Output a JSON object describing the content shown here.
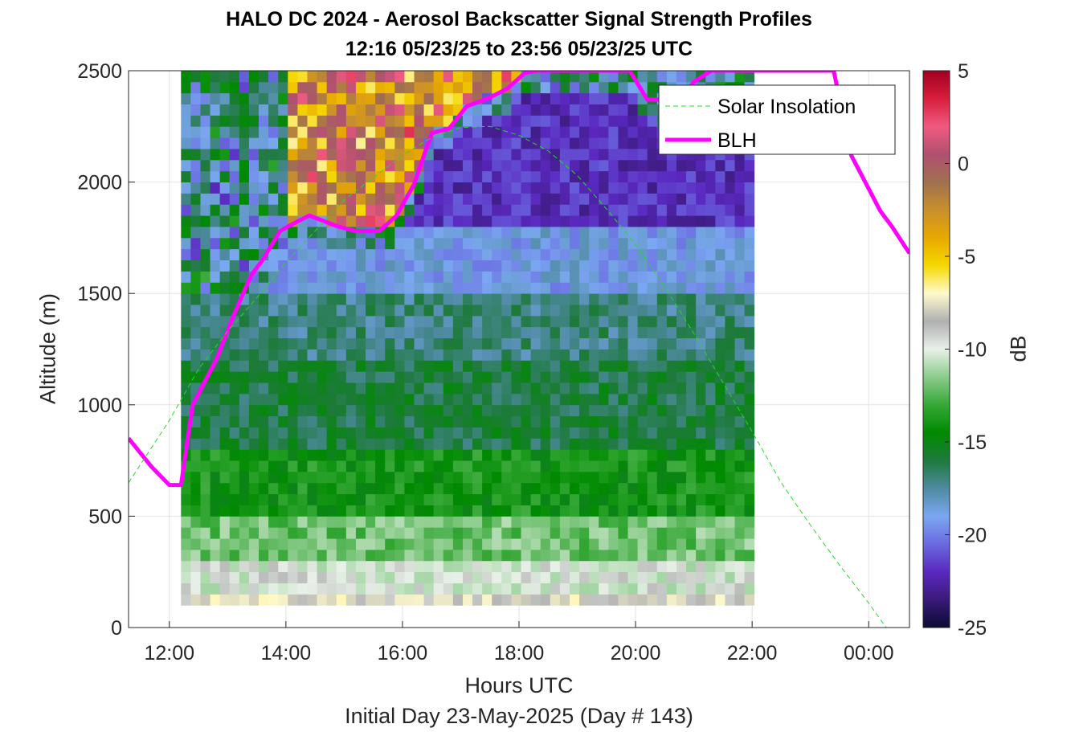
{
  "chart_data": {
    "type": "heatmap",
    "title": "HALO DC 2024 - Aerosol Backscatter Signal Strength Profiles",
    "subtitle": "12:16 05/23/25 to 23:56 05/23/25  UTC",
    "xlabel": "Hours UTC",
    "caption": "Initial Day 23-May-2025 (Day # 143)",
    "ylabel": "Altitude (m)",
    "colorbar_label": "dB",
    "x_range_hours": [
      11.3,
      24.7
    ],
    "y_range_m": [
      0,
      2500
    ],
    "x_ticks": [
      {
        "hour": 12,
        "label": "12:00"
      },
      {
        "hour": 14,
        "label": "14:00"
      },
      {
        "hour": 16,
        "label": "16:00"
      },
      {
        "hour": 18,
        "label": "18:00"
      },
      {
        "hour": 20,
        "label": "20:00"
      },
      {
        "hour": 22,
        "label": "22:00"
      },
      {
        "hour": 24,
        "label": "00:00"
      }
    ],
    "y_ticks": [
      {
        "value": 0,
        "label": "0"
      },
      {
        "value": 500,
        "label": "500"
      },
      {
        "value": 1000,
        "label": "1000"
      },
      {
        "value": 1500,
        "label": "1500"
      },
      {
        "value": 2000,
        "label": "2000"
      },
      {
        "value": 2500,
        "label": "2500"
      }
    ],
    "colorbar": {
      "range_db": [
        -25,
        5
      ],
      "ticks": [
        {
          "value": 5,
          "label": "5"
        },
        {
          "value": 0,
          "label": "0"
        },
        {
          "value": -5,
          "label": "-5"
        },
        {
          "value": -10,
          "label": "-10"
        },
        {
          "value": -15,
          "label": "-15"
        },
        {
          "value": -20,
          "label": "-20"
        },
        {
          "value": -25,
          "label": "-25"
        }
      ],
      "colors": [
        "#0a0a33",
        "#3a1a78",
        "#5a28c0",
        "#6a6ae0",
        "#7aa8f0",
        "#4e8aa0",
        "#1e7a3c",
        "#008a00",
        "#36a836",
        "#8ccc8c",
        "#e8f0e8",
        "#b0b0b0",
        "#fffacd",
        "#f5d800",
        "#e8a800",
        "#c8902c",
        "#a07050",
        "#b05070",
        "#f05a80",
        "#d81e3c",
        "#a00020"
      ]
    },
    "grid": true,
    "legend_placement": "top-right",
    "legend": [
      {
        "name": "Solar Insolation",
        "color": "#22dd22",
        "style": "dashed"
      },
      {
        "name": "BLH",
        "color": "#ff00ff",
        "style": "solid"
      }
    ],
    "heatmap": {
      "time_start_hour": 12.2,
      "time_step_hour": 0.1667,
      "columns": 59,
      "altitude_start_m": 100,
      "altitude_step_m": 50,
      "rows": 48,
      "value_units": "dB",
      "layers_by_altitude": [
        {
          "from_m": 100,
          "to_m": 150,
          "db": -8
        },
        {
          "from_m": 150,
          "to_m": 300,
          "db": -10
        },
        {
          "from_m": 300,
          "to_m": 500,
          "db": -12
        },
        {
          "from_m": 500,
          "to_m": 800,
          "db": -14
        },
        {
          "from_m": 800,
          "to_m": 1200,
          "db": -16
        },
        {
          "from_m": 1200,
          "to_m": 1500,
          "db": -17
        },
        {
          "from_m": 1500,
          "to_m": 1800,
          "db": -19
        },
        {
          "from_m": 1800,
          "to_m": 2500,
          "db": -22
        }
      ]
    },
    "series": [
      {
        "name": "BLH",
        "units": "m",
        "x": [
          11.3,
          11.7,
          12.0,
          12.2,
          12.4,
          12.8,
          13.1,
          13.4,
          13.6,
          13.9,
          14.1,
          14.4,
          14.7,
          14.9,
          15.2,
          15.6,
          15.9,
          16.2,
          16.5,
          16.8,
          17.1,
          17.5,
          17.8,
          18.1,
          18.3,
          18.5,
          19.2,
          19.6,
          19.9,
          20.2,
          20.5,
          20.8,
          21.0,
          21.3,
          21.6,
          22.0,
          22.3,
          22.6,
          23.0,
          23.4,
          23.7,
          24.2,
          24.4,
          24.7
        ],
        "y": [
          850,
          720,
          640,
          640,
          1000,
          1200,
          1400,
          1580,
          1650,
          1780,
          1810,
          1850,
          1820,
          1800,
          1780,
          1780,
          1850,
          1990,
          2220,
          2240,
          2340,
          2380,
          2420,
          2490,
          2500,
          2500,
          2500,
          2500,
          2500,
          2370,
          2370,
          2370,
          2450,
          2500,
          2500,
          2500,
          2500,
          2500,
          2500,
          2500,
          2120,
          1870,
          1800,
          1680
        ]
      },
      {
        "name": "Solar Insolation",
        "units": "m",
        "x": [
          11.3,
          12.0,
          12.5,
          13.0,
          13.5,
          14.0,
          14.5,
          15.0,
          15.5,
          16.0,
          16.5,
          17.0,
          17.5,
          18.0,
          18.5,
          19.0,
          19.5,
          20.0,
          20.5,
          21.0,
          21.5,
          22.0,
          22.5,
          23.0,
          23.5,
          24.0,
          24.3,
          24.7
        ],
        "y": [
          650,
          930,
          1160,
          1330,
          1480,
          1640,
          1780,
          1920,
          2020,
          2120,
          2200,
          2245,
          2250,
          2210,
          2140,
          2030,
          1880,
          1720,
          1530,
          1320,
          1100,
          880,
          650,
          460,
          280,
          110,
          0,
          0
        ]
      }
    ]
  }
}
